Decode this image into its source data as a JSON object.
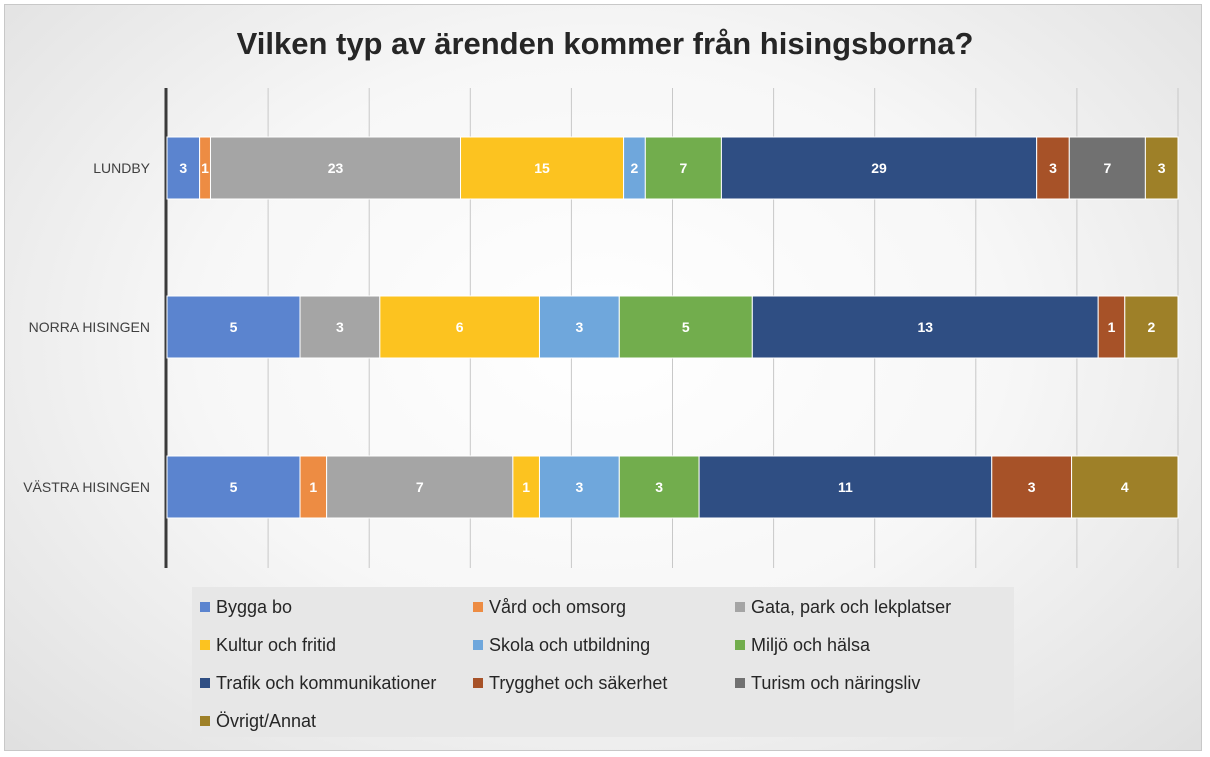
{
  "chart_data": {
    "type": "bar",
    "orientation": "horizontal",
    "stacked": true,
    "title": "Vilken typ av ärenden kommer från hisingsborna?",
    "categories": [
      "LUNDBY",
      "NORRA HISINGEN",
      "VÄSTRA HISINGEN"
    ],
    "series": [
      {
        "name": "Bygga bo",
        "color": "#5b84cf",
        "values": [
          3,
          5,
          5
        ]
      },
      {
        "name": "Vård och omsorg",
        "color": "#ed8c43",
        "values": [
          1,
          0,
          1
        ]
      },
      {
        "name": "Gata, park och lekplatser",
        "color": "#a5a5a5",
        "values": [
          23,
          3,
          7
        ]
      },
      {
        "name": "Kultur och fritid",
        "color": "#fcc320",
        "values": [
          15,
          6,
          1
        ]
      },
      {
        "name": "Skola och utbildning",
        "color": "#6fa7dc",
        "values": [
          2,
          3,
          3
        ]
      },
      {
        "name": "Miljö och hälsa",
        "color": "#72ad4d",
        "values": [
          7,
          5,
          3
        ]
      },
      {
        "name": "Trafik och kommunikationer",
        "color": "#2f4e83",
        "values": [
          29,
          13,
          11
        ]
      },
      {
        "name": "Trygghet och säkerhet",
        "color": "#a75228",
        "values": [
          3,
          1,
          3
        ]
      },
      {
        "name": "Turism och näringsliv",
        "color": "#717171",
        "values": [
          7,
          0,
          0
        ]
      },
      {
        "name": "Övrigt/Annat",
        "color": "#9e8028",
        "values": [
          3,
          2,
          4
        ]
      }
    ],
    "scale": "each bar normalized to 100% of category total",
    "grid": true,
    "axis_tick_labels_shown": false,
    "legend_position": "bottom"
  }
}
